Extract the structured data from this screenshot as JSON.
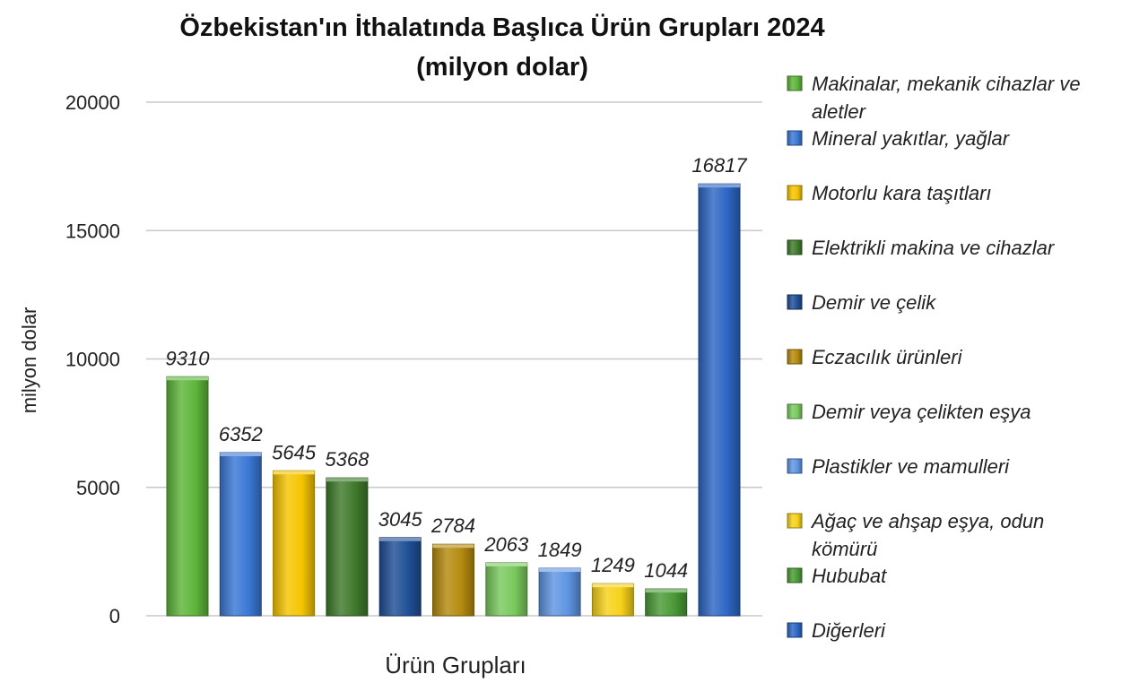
{
  "chart_data": {
    "type": "bar",
    "title_lines": [
      "Özbekistan'ın İthalatında Başlıca Ürün Grupları 2024",
      "(milyon dolar)"
    ],
    "xlabel": "Ürün Grupları",
    "ylabel": "milyon dolar",
    "ylim": [
      0,
      20000
    ],
    "yticks": [
      0,
      5000,
      10000,
      15000,
      20000
    ],
    "grid": true,
    "legend_position": "right",
    "categories": [
      {
        "label_lines": [
          "Makinalar, mekanik cihazlar ve",
          "aletler"
        ],
        "value": 9310,
        "color": "#5db53a"
      },
      {
        "label_lines": [
          "Mineral yakıtlar, yağlar"
        ],
        "value": 6352,
        "color": "#3a78d4"
      },
      {
        "label_lines": [
          "Motorlu kara taşıtları"
        ],
        "value": 5645,
        "color": "#f5c400"
      },
      {
        "label_lines": [
          "Elektrikli makina ve cihazlar"
        ],
        "value": 5368,
        "color": "#3f7a2c"
      },
      {
        "label_lines": [
          "Demir ve çelik"
        ],
        "value": 3045,
        "color": "#1f4f96"
      },
      {
        "label_lines": [
          "Eczacılık ürünleri"
        ],
        "value": 2784,
        "color": "#b48a0e"
      },
      {
        "label_lines": [
          "Demir veya çelikten eşya"
        ],
        "value": 2063,
        "color": "#79c95d"
      },
      {
        "label_lines": [
          "Plastikler ve mamulleri"
        ],
        "value": 1849,
        "color": "#5f95e3"
      },
      {
        "label_lines": [
          "Ağaç ve ahşap eşya, odun",
          "kömürü"
        ],
        "value": 1249,
        "color": "#f7d21a"
      },
      {
        "label_lines": [
          "Hububat"
        ],
        "value": 1044,
        "color": "#4a9a36"
      },
      {
        "label_lines": [
          "Diğerleri"
        ],
        "value": 16817,
        "color": "#2d66c4"
      }
    ]
  }
}
